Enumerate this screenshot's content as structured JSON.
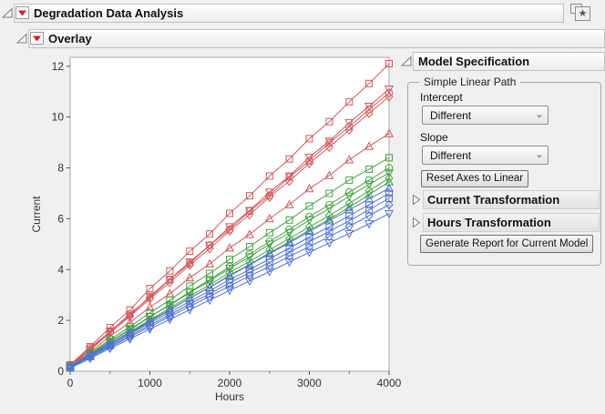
{
  "window": {
    "outline_title": "Degradation Data Analysis",
    "overlay_title": "Overlay"
  },
  "icons": {
    "publish_star": "★",
    "dropdown_chevron": "⌄"
  },
  "model_spec": {
    "title": "Model Specification",
    "group_label": "Simple Linear Path",
    "intercept_label": "Intercept",
    "intercept_value": "Different",
    "slope_label": "Slope",
    "slope_value": "Different",
    "reset_button_label": "Reset Axes to Linear",
    "current_transformation_label": "Current Transformation",
    "hours_transformation_label": "Hours Transformation",
    "generate_button_label": "Generate Report for Current Model"
  },
  "colors": {
    "red": "#d05a5e",
    "green": "#46a346",
    "blue": "#5273d2",
    "menu_red": "#cc2026",
    "frame": "#a8a8a8"
  },
  "chart_data": {
    "type": "line",
    "title": "",
    "xlabel": "Hours",
    "ylabel": "Current",
    "xlim": [
      0,
      4000
    ],
    "ylim": [
      0,
      12.35
    ],
    "xticks": [
      0,
      1000,
      2000,
      3000,
      4000
    ],
    "xminor": [
      500,
      1500,
      2500,
      3500
    ],
    "yticks": [
      0,
      2,
      4,
      6,
      8,
      10,
      12
    ],
    "grid": false,
    "legend": "none",
    "x": [
      0,
      250,
      500,
      750,
      1000,
      1250,
      1500,
      1750,
      2000,
      2250,
      2500,
      2750,
      3000,
      3250,
      3500,
      3750,
      4000
    ],
    "series": [
      {
        "color": "red",
        "marker": "square",
        "values": [
          0.25,
          0.97,
          1.72,
          2.41,
          3.25,
          3.95,
          4.72,
          5.4,
          6.21,
          6.9,
          7.68,
          8.35,
          9.15,
          9.82,
          10.6,
          11.32,
          12.1
        ]
      },
      {
        "color": "red",
        "marker": "triangle-down",
        "values": [
          0.2,
          0.85,
          1.58,
          2.2,
          2.95,
          3.62,
          4.3,
          4.95,
          5.68,
          6.32,
          7.05,
          7.68,
          8.42,
          9.05,
          9.78,
          10.42,
          11.1
        ]
      },
      {
        "color": "red",
        "marker": "circle",
        "values": [
          0.22,
          0.92,
          1.55,
          2.26,
          2.9,
          3.6,
          4.25,
          4.96,
          5.58,
          6.3,
          6.92,
          7.64,
          8.28,
          8.98,
          9.62,
          10.3,
          10.95
        ]
      },
      {
        "color": "red",
        "marker": "diamond",
        "values": [
          0.18,
          0.83,
          1.52,
          2.15,
          2.85,
          3.5,
          4.18,
          4.83,
          5.52,
          6.16,
          6.85,
          7.48,
          8.18,
          8.82,
          9.5,
          10.15,
          10.8
        ]
      },
      {
        "color": "red",
        "marker": "triangle-up",
        "values": [
          0.2,
          0.75,
          1.38,
          1.92,
          2.52,
          3.05,
          3.68,
          4.22,
          4.85,
          5.38,
          6.0,
          6.55,
          7.18,
          7.7,
          8.32,
          8.85,
          9.35
        ]
      },
      {
        "color": "green",
        "marker": "square",
        "values": [
          0.18,
          0.7,
          1.25,
          1.75,
          2.3,
          2.8,
          3.35,
          3.85,
          4.4,
          4.9,
          5.45,
          5.95,
          6.5,
          7.0,
          7.52,
          7.95,
          8.4
        ]
      },
      {
        "color": "green",
        "marker": "circle",
        "values": [
          0.15,
          0.65,
          1.16,
          1.62,
          2.14,
          2.62,
          3.12,
          3.6,
          4.12,
          4.6,
          5.1,
          5.58,
          6.08,
          6.55,
          7.05,
          7.52,
          8.0
        ]
      },
      {
        "color": "green",
        "marker": "triangle-down",
        "values": [
          0.2,
          0.68,
          1.18,
          1.65,
          2.15,
          2.6,
          3.1,
          3.55,
          4.05,
          4.5,
          5.0,
          5.45,
          5.95,
          6.4,
          6.88,
          7.35,
          7.8
        ]
      },
      {
        "color": "green",
        "marker": "diamond",
        "values": [
          0.15,
          0.62,
          1.1,
          1.55,
          2.02,
          2.48,
          2.95,
          3.4,
          3.88,
          4.32,
          4.78,
          5.22,
          5.68,
          6.12,
          6.6,
          7.1,
          7.6
        ]
      },
      {
        "color": "green",
        "marker": "triangle-up",
        "values": [
          0.12,
          0.58,
          1.05,
          1.48,
          1.95,
          2.4,
          2.88,
          3.3,
          3.78,
          4.2,
          4.66,
          5.1,
          5.55,
          5.98,
          6.45,
          6.95,
          7.45
        ]
      },
      {
        "color": "blue",
        "marker": "triangle-up",
        "values": [
          0.2,
          0.64,
          1.1,
          1.52,
          1.98,
          2.42,
          2.88,
          3.3,
          3.75,
          4.18,
          4.62,
          5.05,
          5.5,
          5.92,
          6.35,
          6.78,
          7.2
        ]
      },
      {
        "color": "blue",
        "marker": "circle",
        "values": [
          0.18,
          0.62,
          1.05,
          1.46,
          1.9,
          2.32,
          2.75,
          3.16,
          3.6,
          4.0,
          4.42,
          4.85,
          5.28,
          5.68,
          6.12,
          6.55,
          7.0
        ]
      },
      {
        "color": "blue",
        "marker": "square",
        "values": [
          0.15,
          0.58,
          1.0,
          1.4,
          1.82,
          2.22,
          2.65,
          3.05,
          3.48,
          3.88,
          4.28,
          4.68,
          5.1,
          5.5,
          5.92,
          6.35,
          6.8
        ]
      },
      {
        "color": "blue",
        "marker": "diamond",
        "values": [
          0.15,
          0.55,
          0.95,
          1.35,
          1.75,
          2.15,
          2.55,
          2.95,
          3.35,
          3.75,
          4.12,
          4.52,
          4.9,
          5.3,
          5.7,
          6.12,
          6.55
        ]
      },
      {
        "color": "blue",
        "marker": "triangle-down",
        "values": [
          0.12,
          0.5,
          0.9,
          1.27,
          1.66,
          2.04,
          2.42,
          2.8,
          3.18,
          3.55,
          3.92,
          4.3,
          4.68,
          5.05,
          5.42,
          5.8,
          6.2
        ]
      }
    ]
  }
}
